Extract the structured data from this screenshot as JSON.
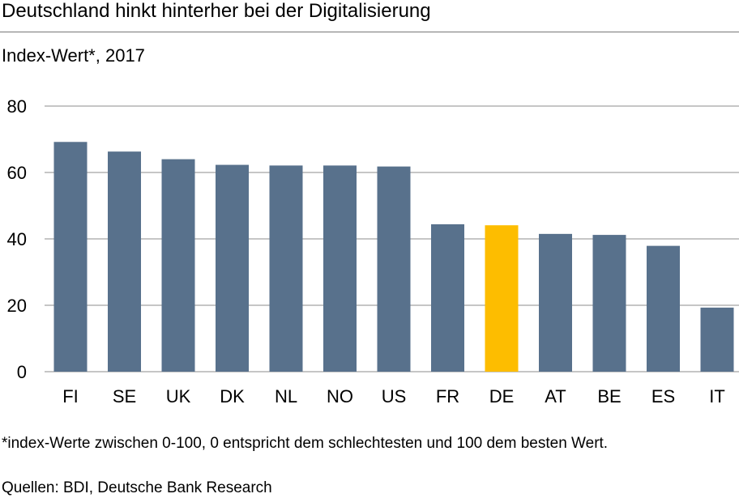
{
  "header": {
    "title": "Deutschland hinkt hinterher bei der Digitalisierung",
    "subtitle": "Index-Wert*, 2017"
  },
  "footer": {
    "footnote": "*index-Werte zwischen 0-100, 0 entspricht dem schlechtesten und 100 dem besten Wert.",
    "source": "Quellen: BDI, Deutsche Bank Research"
  },
  "colors": {
    "bar": "#58718C",
    "highlight": "#FDBD00",
    "grid": "#8C8C8C"
  },
  "chart_data": {
    "type": "bar",
    "title": "Deutschland hinkt hinterher bei der Digitalisierung",
    "subtitle": "Index-Wert*, 2017",
    "categories": [
      "FI",
      "SE",
      "UK",
      "DK",
      "NL",
      "NO",
      "US",
      "FR",
      "DE",
      "AT",
      "BE",
      "ES",
      "IT"
    ],
    "values": [
      69.2,
      66.3,
      64.0,
      62.3,
      62.1,
      62.1,
      61.8,
      44.4,
      44.1,
      41.5,
      41.2,
      37.9,
      19.3
    ],
    "highlight_category": "DE",
    "xlabel": "",
    "ylabel": "",
    "ylim": [
      0,
      80
    ],
    "yticks": [
      0,
      20,
      40,
      60,
      80
    ],
    "grid": true,
    "legend": "none"
  }
}
